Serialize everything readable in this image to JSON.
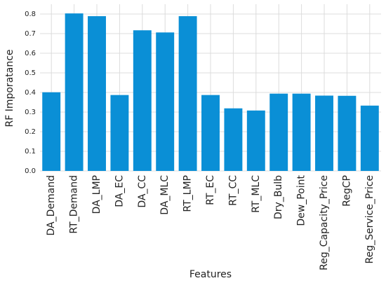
{
  "chart_data": {
    "type": "bar",
    "x_label": "Features",
    "y_label": "RF Imporatance",
    "categories": [
      "DA_Demand",
      "RT_Demand",
      "DA_LMP",
      "DA_EC",
      "DA_CC",
      "DA_MLC",
      "RT_LMP",
      "RT_EC",
      "RT_CC",
      "RT_MLC",
      "Dry_Bulb",
      "Dew_Point",
      "Reg_Capacity_Price",
      "RegCP",
      "Reg_Service_Price"
    ],
    "values": [
      0.401,
      0.803,
      0.789,
      0.387,
      0.717,
      0.706,
      0.789,
      0.387,
      0.319,
      0.308,
      0.394,
      0.394,
      0.384,
      0.383,
      0.333
    ],
    "color": "#0a8fd6",
    "ylim": [
      0,
      0.85
    ],
    "yticks": [
      {
        "value": 0,
        "label": "0.0"
      },
      0.1,
      0.2,
      0.3,
      0.4,
      0.5,
      0.6,
      0.7,
      0.8
    ],
    "grid": true
  }
}
